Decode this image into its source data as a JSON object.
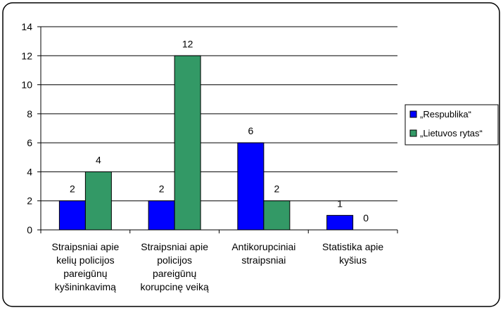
{
  "chart_data": {
    "type": "bar",
    "categories": [
      [
        "Straipsniai apie",
        "kelių policijos",
        "pareigūnų",
        "kyšininkavimą"
      ],
      [
        "Straipsniai apie",
        "policijos",
        "pareigūnų",
        "korupcinę veiką"
      ],
      [
        "Antikorupciniai",
        "straipsniai"
      ],
      [
        "Statistika apie",
        "kyšius"
      ]
    ],
    "series": [
      {
        "name": "„Respublika“",
        "values": [
          2,
          2,
          6,
          1
        ],
        "color": "#0000ff"
      },
      {
        "name": "„Lietuvos rytas“",
        "values": [
          4,
          12,
          2,
          0
        ],
        "color": "#339966"
      }
    ],
    "data_labels": true,
    "yticks": [
      0,
      2,
      4,
      6,
      8,
      10,
      12,
      14
    ],
    "ylim": [
      0,
      14
    ],
    "grid": true,
    "legend_position": "right"
  }
}
